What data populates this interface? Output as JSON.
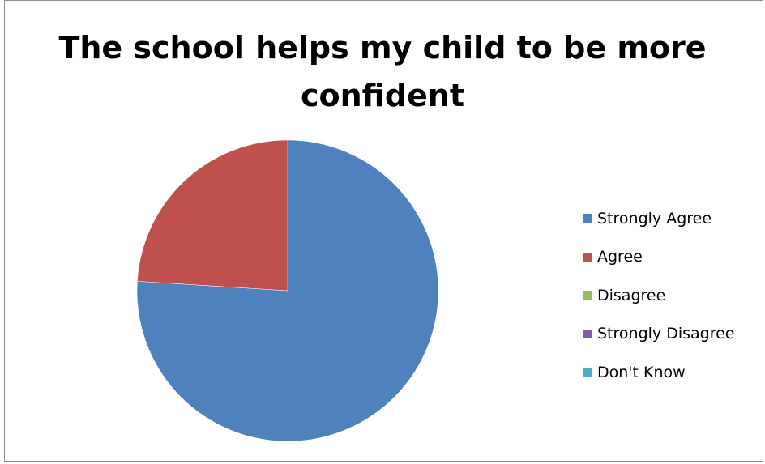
{
  "chart_data": {
    "type": "pie",
    "title": "The school helps my child to be more confident",
    "title_lines": [
      "The school helps my child to be more",
      "confident"
    ],
    "categories": [
      "Strongly Agree",
      "Agree",
      "Disagree",
      "Strongly Disagree",
      "Don't Know"
    ],
    "values": [
      76,
      24,
      0,
      0,
      0
    ],
    "colors": [
      "#4f81bd",
      "#c0504d",
      "#9bbb59",
      "#8064a2",
      "#4bacc6"
    ],
    "legend_position": "right",
    "start_angle": "top, clockwise"
  }
}
